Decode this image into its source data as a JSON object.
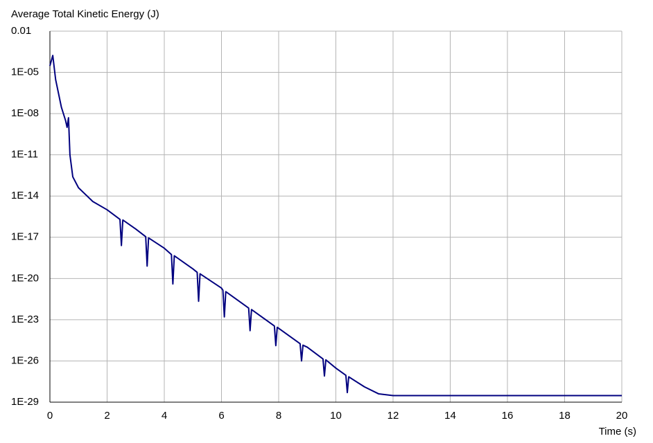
{
  "chart_data": {
    "type": "line",
    "title": "Average Total Kinetic Energy (J)",
    "x_label": "Time (s)",
    "log_y": true,
    "grid": true,
    "xlim": [
      0,
      20
    ],
    "xticks": [
      0,
      2,
      4,
      6,
      8,
      10,
      12,
      14,
      16,
      18,
      20
    ],
    "ylim": [
      1e-29,
      0.01
    ],
    "yticks": [
      {
        "value": 1e-29,
        "label": "1E-29"
      },
      {
        "value": 1e-26,
        "label": "1E-26"
      },
      {
        "value": 1e-23,
        "label": "1E-23"
      },
      {
        "value": 1e-20,
        "label": "1E-20"
      },
      {
        "value": 1e-17,
        "label": "1E-17"
      },
      {
        "value": 1e-14,
        "label": "1E-14"
      },
      {
        "value": 1e-11,
        "label": "1E-11"
      },
      {
        "value": 1e-08,
        "label": "1E-08"
      },
      {
        "value": 1e-05,
        "label": "1E-05"
      },
      0.01
    ],
    "x": [
      0,
      0.1,
      0.2,
      0.4,
      0.55,
      0.6,
      0.65,
      0.7,
      0.8,
      1.0,
      1.2,
      1.5,
      2,
      2.45,
      2.5,
      2.55,
      3,
      3.35,
      3.4,
      3.45,
      4,
      4.25,
      4.3,
      4.35,
      5,
      5.15,
      5.2,
      5.25,
      6,
      6.05,
      6.1,
      6.15,
      6.95,
      7.0,
      7.05,
      7.85,
      7.9,
      7.95,
      8.75,
      8.8,
      8.85,
      9,
      9.55,
      9.6,
      9.65,
      10,
      10.35,
      10.4,
      10.45,
      11,
      11.5,
      12,
      14,
      16,
      18,
      20
    ],
    "series": [
      {
        "color": "#00007f",
        "values": [
          3e-05,
          0.00017,
          3e-06,
          3e-08,
          3e-09,
          1e-09,
          5e-09,
          1e-11,
          2.5e-13,
          4e-14,
          1.6e-14,
          4e-15,
          1e-15,
          2e-16,
          2.5e-18,
          1.8e-16,
          4e-17,
          1.1e-17,
          8e-20,
          9e-18,
          1.6e-18,
          5.5e-19,
          4e-21,
          4.5e-19,
          5e-20,
          2.8e-20,
          2.2e-22,
          2.2e-20,
          2e-21,
          1.4e-21,
          1.6e-23,
          1.1e-21,
          7e-23,
          1.6e-24,
          5.5e-23,
          3.5e-24,
          1.3e-25,
          2.8e-24,
          1.8e-25,
          1e-26,
          1.4e-25,
          1e-25,
          1.4e-26,
          8e-28,
          1.2e-26,
          3e-27,
          9e-28,
          5e-29,
          7e-28,
          1.3e-28,
          4e-29,
          3e-29,
          3e-29,
          3e-29,
          3e-29,
          3e-29
        ]
      }
    ]
  }
}
